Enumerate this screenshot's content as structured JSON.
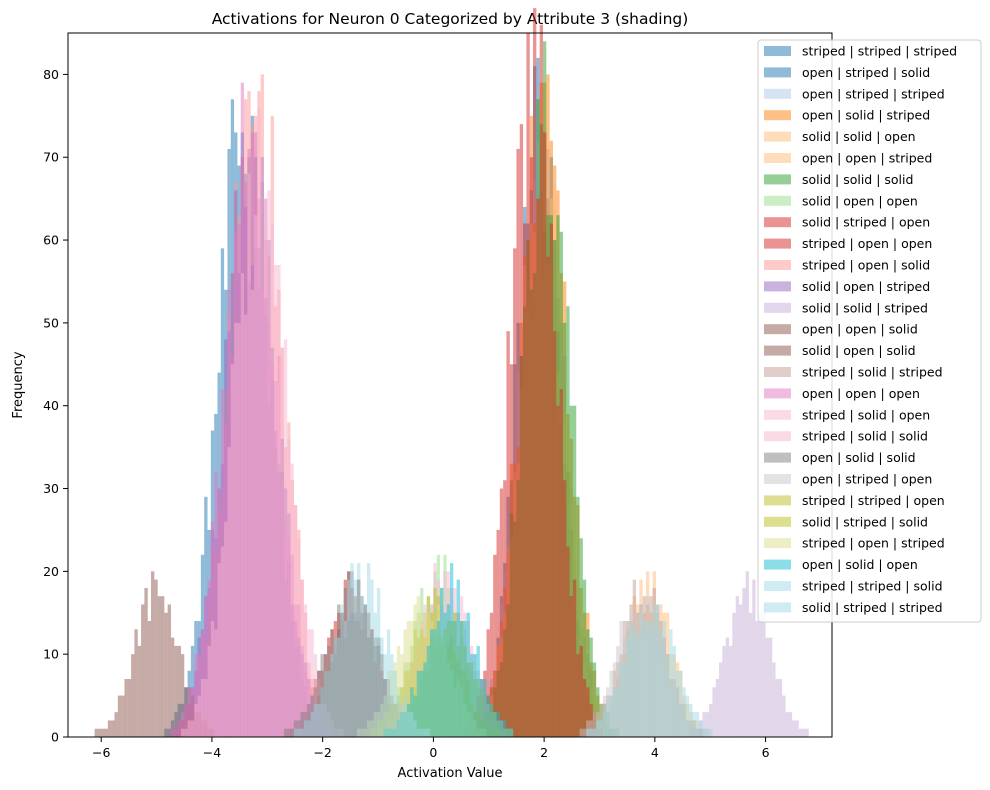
{
  "chart_data": {
    "type": "bar",
    "subtype": "overlaid-histogram",
    "title": "Activations for Neuron 0 Categorized by Attribute 3 (shading)",
    "xlabel": "Activation Value",
    "ylabel": "Frequency",
    "xlim": [
      -6.6,
      7.2
    ],
    "ylim": [
      0,
      85
    ],
    "xticks": [
      -6,
      -4,
      -2,
      0,
      2,
      4,
      6
    ],
    "xtick_labels": [
      "−6",
      "−4",
      "−2",
      "0",
      "2",
      "4",
      "6"
    ],
    "yticks": [
      0,
      10,
      20,
      30,
      40,
      50,
      60,
      70,
      80
    ],
    "ytick_labels": [
      "0",
      "10",
      "20",
      "30",
      "40",
      "50",
      "60",
      "70",
      "80"
    ],
    "grid": false,
    "legend_position": "top-right",
    "bin_width": 0.06,
    "series": [
      {
        "name": "striped | striped | striped",
        "color": "#1f77b4",
        "center": -3.4,
        "sd": 0.48,
        "peak": 75
      },
      {
        "name": "open | striped | solid",
        "color": "#1f77b4",
        "center": 1.9,
        "sd": 0.38,
        "peak": 76
      },
      {
        "name": "open | striped | striped",
        "color": "#aec7e8",
        "center": 1.95,
        "sd": 0.42,
        "peak": 66
      },
      {
        "name": "open | solid | striped",
        "color": "#ff7f0e",
        "center": 2.0,
        "sd": 0.42,
        "peak": 79
      },
      {
        "name": "solid | solid | open",
        "color": "#ffbb78",
        "center": 1.95,
        "sd": 0.4,
        "peak": 70
      },
      {
        "name": "open | open | striped",
        "color": "#ffbb78",
        "center": 3.9,
        "sd": 0.4,
        "peak": 19
      },
      {
        "name": "solid | solid | solid",
        "color": "#2ca02c",
        "center": 2.05,
        "sd": 0.42,
        "peak": 75
      },
      {
        "name": "solid | open | open",
        "color": "#98df8a",
        "center": 0.1,
        "sd": 0.45,
        "peak": 20
      },
      {
        "name": "solid | striped | open",
        "color": "#d62728",
        "center": 1.8,
        "sd": 0.42,
        "peak": 81
      },
      {
        "name": "striped | open | open",
        "color": "#d62728",
        "center": -1.5,
        "sd": 0.45,
        "peak": 18
      },
      {
        "name": "striped | open | solid",
        "color": "#ff9896",
        "center": -3.2,
        "sd": 0.48,
        "peak": 79
      },
      {
        "name": "solid | open | striped",
        "color": "#9467bd",
        "center": -3.3,
        "sd": 0.48,
        "peak": 68
      },
      {
        "name": "solid | solid | striped",
        "color": "#c5b0d5",
        "center": 5.7,
        "sd": 0.4,
        "peak": 18
      },
      {
        "name": "open | open | solid",
        "color": "#8c564b",
        "center": -5.0,
        "sd": 0.4,
        "peak": 18
      },
      {
        "name": "solid | open | solid",
        "color": "#8c564b",
        "center": -1.4,
        "sd": 0.45,
        "peak": 16
      },
      {
        "name": "striped | solid | striped",
        "color": "#c49c94",
        "center": 3.8,
        "sd": 0.4,
        "peak": 18
      },
      {
        "name": "open | open | open",
        "color": "#e377c2",
        "center": -3.3,
        "sd": 0.48,
        "peak": 73
      },
      {
        "name": "striped | solid | open",
        "color": "#f7b6d2",
        "center": 0.2,
        "sd": 0.45,
        "peak": 20
      },
      {
        "name": "striped | solid | solid",
        "color": "#f7b6d2",
        "center": -3.1,
        "sd": 0.48,
        "peak": 72
      },
      {
        "name": "open | solid | solid",
        "color": "#7f7f7f",
        "center": -1.5,
        "sd": 0.45,
        "peak": 18
      },
      {
        "name": "open | striped | open",
        "color": "#c7c7c7",
        "center": 3.7,
        "sd": 0.42,
        "peak": 16
      },
      {
        "name": "striped | striped | open",
        "color": "#bcbd22",
        "center": 0.0,
        "sd": 0.45,
        "peak": 16
      },
      {
        "name": "solid | striped | solid",
        "color": "#bcbd22",
        "center": 0.3,
        "sd": 0.45,
        "peak": 14
      },
      {
        "name": "striped | open | striped",
        "color": "#dbdb8d",
        "center": -0.2,
        "sd": 0.45,
        "peak": 17
      },
      {
        "name": "open | solid | open",
        "color": "#17becf",
        "center": 0.3,
        "sd": 0.45,
        "peak": 18
      },
      {
        "name": "striped | striped | solid",
        "color": "#9edae5",
        "center": 3.9,
        "sd": 0.45,
        "peak": 16
      },
      {
        "name": "solid | striped | striped",
        "color": "#9edae5",
        "center": -1.3,
        "sd": 0.45,
        "peak": 20
      }
    ]
  }
}
